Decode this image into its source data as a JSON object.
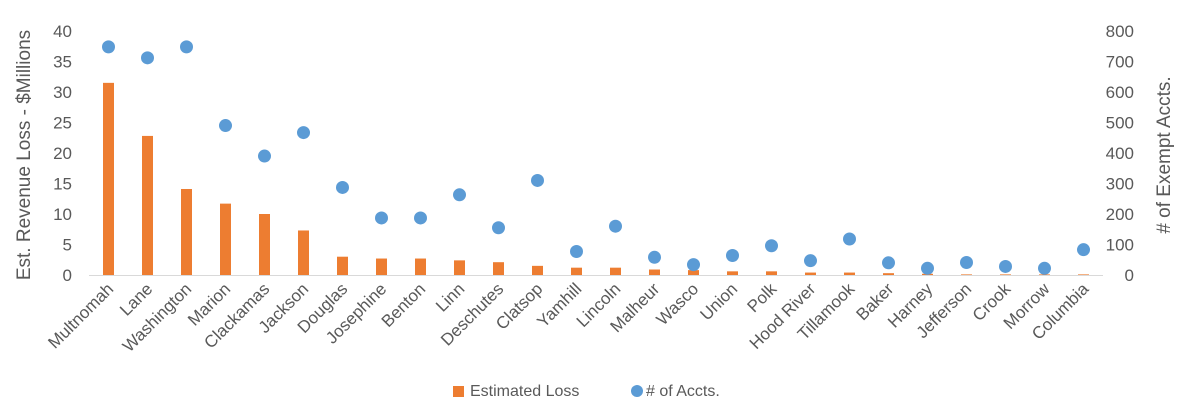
{
  "chart_data": {
    "type": "bar",
    "categories": [
      "Multnomah",
      "Lane",
      "Washington",
      "Marion",
      "Clackamas",
      "Jackson",
      "Douglas",
      "Josephine",
      "Benton",
      "Linn",
      "Deschutes",
      "Clatsop",
      "Yamhill",
      "Lincoln",
      "Malheur",
      "Wasco",
      "Union",
      "Polk",
      "Hood River",
      "Tillamook",
      "Baker",
      "Harney",
      "Jefferson",
      "Crook",
      "Morrow",
      "Columbia"
    ],
    "series": [
      {
        "name": "Estimated Loss",
        "type": "bar",
        "axis": "left",
        "color": "#ED7D31",
        "values": [
          31.5,
          22.8,
          14.1,
          11.7,
          10.0,
          7.3,
          3.0,
          2.7,
          2.7,
          2.4,
          2.1,
          1.5,
          1.2,
          1.2,
          0.9,
          0.8,
          0.6,
          0.6,
          0.4,
          0.4,
          0.3,
          0.2,
          0.1,
          0.1,
          0.1,
          0.1
        ]
      },
      {
        "name": "# of Accts.",
        "type": "scatter",
        "axis": "right",
        "color": "#5B9BD5",
        "values": [
          748,
          712,
          748,
          490,
          390,
          467,
          287,
          187,
          187,
          263,
          155,
          310,
          77,
          160,
          58,
          34,
          64,
          96,
          47,
          118,
          40,
          22,
          41,
          28,
          22,
          83
        ]
      }
    ],
    "ylabel": "Est. Revenue Loss - $Millions",
    "y2label": "# of Exempt Accts.",
    "ylim": [
      0,
      40
    ],
    "y2lim": [
      0,
      800
    ],
    "yticks": [
      "0",
      "5",
      "10",
      "15",
      "20",
      "25",
      "30",
      "35",
      "40"
    ],
    "y2ticks": [
      "0",
      "100",
      "200",
      "300",
      "400",
      "500",
      "600",
      "700",
      "800"
    ],
    "legend": "bottom",
    "grid": false
  }
}
